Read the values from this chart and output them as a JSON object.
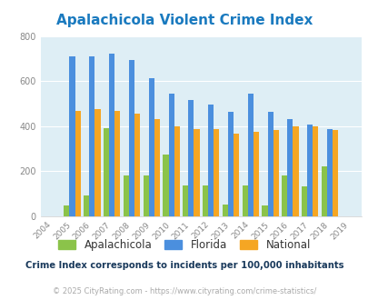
{
  "title": "Apalachicola Violent Crime Index",
  "years": [
    2004,
    2005,
    2006,
    2007,
    2008,
    2009,
    2010,
    2011,
    2012,
    2013,
    2014,
    2015,
    2016,
    2017,
    2018,
    2019
  ],
  "apalachicola": [
    0,
    47,
    90,
    390,
    182,
    182,
    272,
    135,
    135,
    50,
    135,
    45,
    182,
    130,
    220,
    0
  ],
  "florida": [
    0,
    710,
    710,
    720,
    693,
    613,
    543,
    517,
    496,
    462,
    543,
    465,
    432,
    405,
    388,
    0
  ],
  "national": [
    0,
    469,
    475,
    469,
    455,
    430,
    400,
    387,
    387,
    367,
    375,
    383,
    397,
    398,
    383,
    0
  ],
  "color_apalachicola": "#8bc34a",
  "color_florida": "#4b8fde",
  "color_national": "#f5a623",
  "bg_color": "#deeef5",
  "title_color": "#1a7abf",
  "ylabel_max": 800,
  "yticks": [
    0,
    200,
    400,
    600,
    800
  ],
  "footer_text": "Crime Index corresponds to incidents per 100,000 inhabitants",
  "copyright_text": "© 2025 CityRating.com - https://www.cityrating.com/crime-statistics/",
  "bar_width": 0.28
}
